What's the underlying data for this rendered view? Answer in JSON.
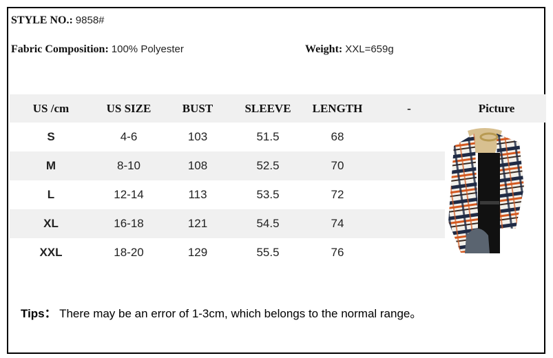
{
  "style": {
    "label": "STYLE NO.:",
    "value": "9858#"
  },
  "fabric": {
    "label": "Fabric Composition:",
    "value": "100% Polyester"
  },
  "weight": {
    "label": "Weight:",
    "value": "XXL=659g"
  },
  "table": {
    "headers": [
      "US /cm",
      "US SIZE",
      "BUST",
      "SLEEVE",
      "LENGTH",
      "-",
      "Picture"
    ],
    "rows": [
      [
        "S",
        "4-6",
        "103",
        "51.5",
        "68"
      ],
      [
        "M",
        "8-10",
        "108",
        "52.5",
        "70"
      ],
      [
        "L",
        "12-14",
        "113",
        "53.5",
        "72"
      ],
      [
        "XL",
        "16-18",
        "121",
        "54.5",
        "74"
      ],
      [
        "XXL",
        "18-20",
        "129",
        "55.5",
        "76"
      ]
    ]
  },
  "picture": {
    "description_icon": "plaid-shirt-jacket-photo",
    "colors": [
      "#1f2a44",
      "#d4581f",
      "#f2f0ea",
      "#111111"
    ]
  },
  "tips": {
    "label": "Tips：",
    "text": "There may be an error of 1-3cm, which belongs to the normal range。"
  }
}
